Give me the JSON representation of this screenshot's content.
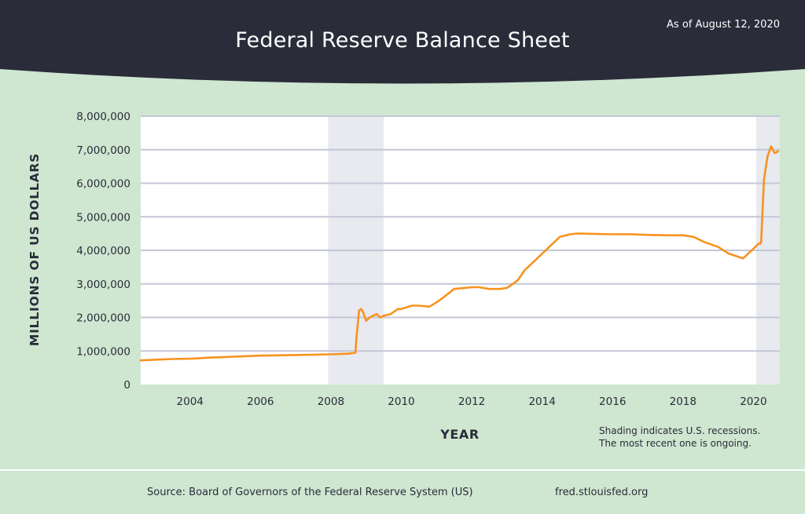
{
  "header": {
    "title": "Federal Reserve Balance Sheet",
    "as_of": "As of August 12, 2020"
  },
  "colors": {
    "banner": "#2a2c3a",
    "background": "#cfe6d0",
    "plot_area": "#ffffff",
    "recession_shade": "#e9e9f0",
    "gridline": "#c4c7d6",
    "series_line": "#f7931e",
    "text": "#2a2c3a"
  },
  "chart_data": {
    "type": "line",
    "title": "Federal Reserve Balance Sheet",
    "xlabel": "YEAR",
    "ylabel": "MILLIONS OF US DOLLARS",
    "xlim": [
      2002.6,
      2020.75
    ],
    "ylim": [
      0,
      8000000
    ],
    "x_ticks": [
      2004,
      2006,
      2008,
      2010,
      2012,
      2014,
      2016,
      2018,
      2020
    ],
    "y_ticks": [
      0,
      1000000,
      2000000,
      3000000,
      4000000,
      5000000,
      6000000,
      7000000,
      8000000
    ],
    "y_tick_labels": [
      "0",
      "1,000,000",
      "2,000,000",
      "3,000,000",
      "4,000,000",
      "5,000,000",
      "6,000,000",
      "7,000,000",
      "8,000,000"
    ],
    "grid": "horizontal",
    "recessions": [
      {
        "start": 2007.92,
        "end": 2009.5
      },
      {
        "start": 2020.08,
        "end": 2020.75
      }
    ],
    "series": [
      {
        "x": [
          2002.6,
          2003.0,
          2003.5,
          2004.0,
          2004.2,
          2004.5,
          2005.0,
          2005.5,
          2006.0,
          2006.5,
          2007.0,
          2007.5,
          2008.0,
          2008.5,
          2008.7,
          2008.72,
          2008.8,
          2008.85,
          2008.9,
          2009.0,
          2009.1,
          2009.3,
          2009.4,
          2009.5,
          2009.7,
          2009.9,
          2010.0,
          2010.3,
          2010.5,
          2010.8,
          2011.0,
          2011.2,
          2011.5,
          2011.8,
          2012.0,
          2012.2,
          2012.5,
          2012.8,
          2013.0,
          2013.3,
          2013.5,
          2013.8,
          2014.0,
          2014.3,
          2014.5,
          2014.8,
          2015.0,
          2015.5,
          2016.0,
          2016.5,
          2017.0,
          2017.5,
          2018.0,
          2018.3,
          2018.6,
          2019.0,
          2019.3,
          2019.6,
          2019.7,
          2019.75,
          2019.9,
          2020.0,
          2020.1,
          2020.15,
          2020.2,
          2020.22,
          2020.25,
          2020.3,
          2020.4,
          2020.5,
          2020.55,
          2020.6,
          2020.7
        ],
        "y": [
          720000,
          740000,
          760000,
          770000,
          780000,
          800000,
          820000,
          840000,
          860000,
          870000,
          880000,
          890000,
          900000,
          920000,
          950000,
          1300000,
          2200000,
          2250000,
          2200000,
          1900000,
          2000000,
          2100000,
          2000000,
          2050000,
          2100000,
          2250000,
          2250000,
          2350000,
          2350000,
          2320000,
          2450000,
          2600000,
          2850000,
          2880000,
          2900000,
          2900000,
          2850000,
          2850000,
          2880000,
          3100000,
          3400000,
          3700000,
          3900000,
          4200000,
          4400000,
          4480000,
          4500000,
          4490000,
          4480000,
          4480000,
          4460000,
          4450000,
          4450000,
          4400000,
          4250000,
          4100000,
          3900000,
          3800000,
          3760000,
          3800000,
          3950000,
          4050000,
          4150000,
          4200000,
          4200000,
          4250000,
          5000000,
          6100000,
          6800000,
          7100000,
          7000000,
          6900000,
          6950000
        ]
      }
    ]
  },
  "footer": {
    "note_line1": "Shading indicates U.S. recessions.",
    "note_line2": "The most recent one is ongoing.",
    "source": "Source: Board of Governors of the Federal Reserve System (US)",
    "url": "fred.stlouisfed.org"
  }
}
